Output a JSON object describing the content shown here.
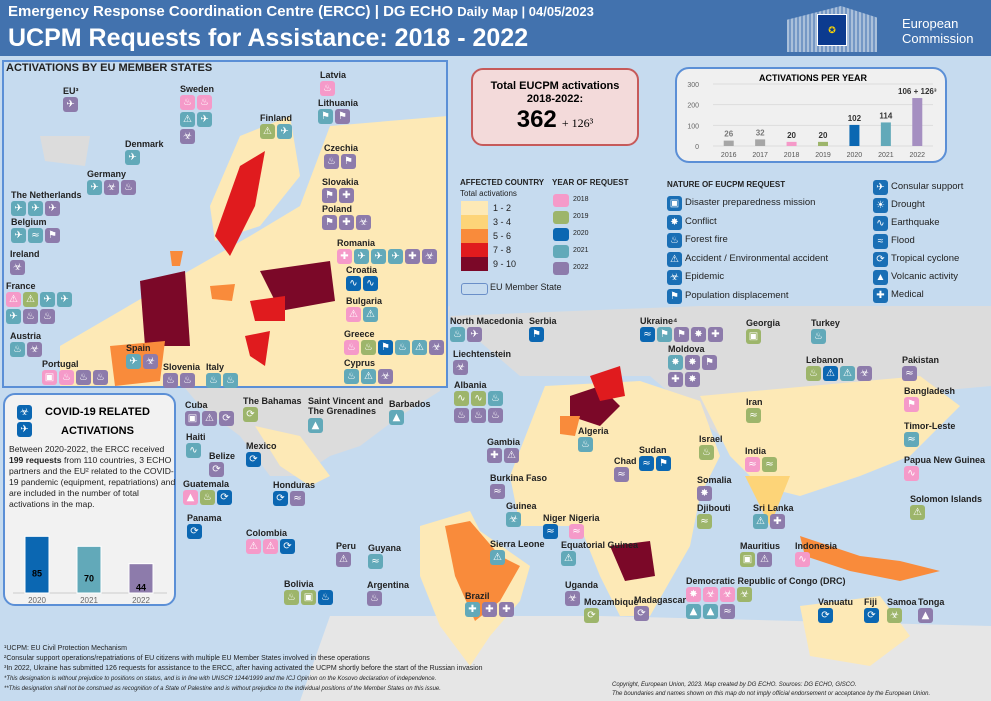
{
  "header": {
    "title_main": "Emergency Response Coordination  Centre (ERCC) | DG ECHO",
    "title_small": "Daily Map | 04/05/2023",
    "subtitle": "UCPM Requests for Assistance: 2018 - 2022",
    "logo_line1": "European",
    "logo_line2": "Commission"
  },
  "inset": {
    "title": "ACTIVATIONS BY EU MEMBER STATES"
  },
  "total": {
    "line1": "Total EUCPM  activations",
    "line2": "2018-2022:",
    "value": "362",
    "extra": "+ 126³"
  },
  "colors": {
    "years": {
      "2018": "#f59ac9",
      "2019": "#9db56b",
      "2020": "#0b67b2",
      "2021": "#62a9b9",
      "2022": "#8d7bab"
    },
    "classes": [
      "#fde9b6",
      "#fdd478",
      "#f98b3b",
      "#e01b1e",
      "#7b0828"
    ],
    "background": "#c6dbef",
    "header": "#4272ae"
  },
  "icon_types": {
    "p": "disaster-preparedness",
    "c": "conflict",
    "f": "forest-fire",
    "a": "accident",
    "e": "epidemic",
    "d": "population-displacement",
    "s": "consular-support",
    "dr": "drought",
    "q": "earthquake",
    "fl": "flood",
    "t": "tropical-cyclone",
    "v": "volcanic-activity",
    "m": "medical"
  },
  "chart_data": [
    {
      "type": "bar",
      "title": "ACTIVATIONS PER YEAR",
      "categories": [
        "2016",
        "2017",
        "2018",
        "2019",
        "2020",
        "2021",
        "2022"
      ],
      "values": [
        26,
        32,
        20,
        20,
        102,
        114,
        232
      ],
      "data_labels": [
        "26",
        "32",
        "20",
        "20",
        "102",
        "114",
        "106 + 126³"
      ],
      "colors": [
        "#a6a6a6",
        "#a6a6a6",
        "#f59ac9",
        "#9db56b",
        "#0b67b2",
        "#62a9b9",
        "#a58fc1"
      ],
      "yticks": [
        "0",
        "100",
        "200",
        "300"
      ],
      "ylim": [
        0,
        300
      ],
      "grid": true
    },
    {
      "type": "bar",
      "title": "COVID-19 RELATED ACTIVATIONS",
      "categories": [
        "2020",
        "2021",
        "2022"
      ],
      "values": [
        85,
        70,
        44
      ],
      "colors": [
        "#0b67b2",
        "#62a9b9",
        "#8d7bab"
      ],
      "ylim": [
        0,
        90
      ]
    }
  ],
  "legend": {
    "affected_title": "AFFECTED COUNTRY",
    "affected_sub": "Total activations",
    "classes": [
      "1 - 2",
      "3 - 4",
      "5 - 6",
      "7 - 8",
      "9 - 10"
    ],
    "year_title": "YEAR OF REQUEST",
    "years": [
      "2018",
      "2019",
      "2020",
      "2021",
      "2022"
    ],
    "eu_member": "EU Member State",
    "nature_title": "NATURE OF EUCPM REQUEST",
    "natures": [
      {
        "icon": "p",
        "label": "Disaster preparedness mission"
      },
      {
        "icon": "c",
        "label": "Conflict"
      },
      {
        "icon": "f",
        "label": "Forest fire"
      },
      {
        "icon": "a",
        "label": "Accident / Environmental accident"
      },
      {
        "icon": "e",
        "label": "Epidemic"
      },
      {
        "icon": "d",
        "label": "Population displacement"
      },
      {
        "icon": "s",
        "label": "Consular support"
      },
      {
        "icon": "dr",
        "label": "Drought"
      },
      {
        "icon": "q",
        "label": "Earthquake"
      },
      {
        "icon": "fl",
        "label": "Flood"
      },
      {
        "icon": "t",
        "label": "Tropical cyclone"
      },
      {
        "icon": "v",
        "label": "Volcanic activity"
      },
      {
        "icon": "m",
        "label": "Medical"
      }
    ]
  },
  "covid": {
    "title1": "COVID-19 RELATED",
    "title2": "ACTIVATIONS",
    "text_before": "Between 2020-2022, the ERCC received ",
    "text_bold": "199 requests",
    "text_after": " from 110 countries, 3 ECHO partners and the EU² related to the COVID-19 pandemic (equipment, repatriations) and are included in the number of total activations in the map."
  },
  "countries": [
    {
      "name": "EU³",
      "icons": [
        "s22"
      ]
    },
    {
      "name": "Sweden",
      "icons": [
        "f18",
        "f18",
        "a21",
        "s21",
        "e22"
      ]
    },
    {
      "name": "Finland",
      "icons": [
        "a19",
        "s21"
      ]
    },
    {
      "name": "Denmark",
      "icons": [
        "s21"
      ]
    },
    {
      "name": "Germany",
      "icons": [
        "s21",
        "e22",
        "f22"
      ]
    },
    {
      "name": "The Netherlands",
      "icons": [
        "s21",
        "s21",
        "s22"
      ]
    },
    {
      "name": "Belgium",
      "icons": [
        "s21",
        "fl21",
        "d22"
      ]
    },
    {
      "name": "Ireland",
      "icons": [
        "e22"
      ]
    },
    {
      "name": "France",
      "icons": [
        "a18",
        "a19",
        "s21",
        "s21",
        "s21",
        "f22",
        "f22"
      ]
    },
    {
      "name": "Austria",
      "icons": [
        "f21",
        "e22"
      ]
    },
    {
      "name": "Portugal",
      "icons": [
        "p18",
        "f18",
        "f22",
        "f22"
      ]
    },
    {
      "name": "Spain",
      "icons": [
        "s21",
        "e22"
      ]
    },
    {
      "name": "Slovenia",
      "icons": [
        "f22",
        "f22"
      ]
    },
    {
      "name": "Italy",
      "icons": [
        "f21",
        "f21"
      ]
    },
    {
      "name": "Latvia",
      "icons": [
        "f18"
      ]
    },
    {
      "name": "Lithuania",
      "icons": [
        "d21",
        "d22"
      ]
    },
    {
      "name": "Czechia",
      "icons": [
        "f22",
        "d22"
      ]
    },
    {
      "name": "Slovakia",
      "icons": [
        "d22",
        "m22"
      ]
    },
    {
      "name": "Poland",
      "icons": [
        "d22",
        "m22",
        "e22"
      ]
    },
    {
      "name": "Romania",
      "icons": [
        "m18",
        "s21",
        "s21",
        "s21",
        "m22",
        "e22"
      ]
    },
    {
      "name": "Croatia",
      "icons": [
        "q20",
        "q20"
      ]
    },
    {
      "name": "Bulgaria",
      "icons": [
        "a18",
        "a21"
      ]
    },
    {
      "name": "Greece",
      "icons": [
        "f18",
        "f19",
        "d20",
        "f21",
        "a21",
        "e22"
      ]
    },
    {
      "name": "Cyprus",
      "icons": [
        "f21",
        "a21",
        "e22"
      ]
    },
    {
      "name": "North Macedonia",
      "icons": [
        "f21",
        "s22"
      ]
    },
    {
      "name": "Serbia",
      "icons": [
        "d20"
      ]
    },
    {
      "name": "Liechtenstein",
      "icons": [
        "e22"
      ]
    },
    {
      "name": "Albania",
      "icons": [
        "q19",
        "q19",
        "f21",
        "f22",
        "f22",
        "f22"
      ]
    },
    {
      "name": "Ukraine⁴",
      "icons": [
        "fl20",
        "d21",
        "d22",
        "c22",
        "m22"
      ]
    },
    {
      "name": "Moldova",
      "icons": [
        "c21",
        "c22",
        "d22",
        "m22",
        "c22"
      ]
    },
    {
      "name": "Cuba",
      "icons": [
        "p22",
        "a22",
        "t22"
      ]
    },
    {
      "name": "The Bahamas",
      "icons": [
        "t19"
      ]
    },
    {
      "name": "Saint Vincent and The Grenadines",
      "icons": [
        "v21"
      ]
    },
    {
      "name": "Barbados",
      "icons": [
        "v21"
      ]
    },
    {
      "name": "Haiti",
      "icons": [
        "q21"
      ]
    },
    {
      "name": "Belize",
      "icons": [
        "t22"
      ]
    },
    {
      "name": "Mexico",
      "icons": [
        "t20"
      ]
    },
    {
      "name": "Guatemala",
      "icons": [
        "v18",
        "f19",
        "t20"
      ]
    },
    {
      "name": "Honduras",
      "icons": [
        "t20",
        "fl22"
      ]
    },
    {
      "name": "Panama",
      "icons": [
        "t20"
      ]
    },
    {
      "name": "Colombia",
      "icons": [
        "a18",
        "a18",
        "t20"
      ]
    },
    {
      "name": "Peru",
      "icons": [
        "a22"
      ]
    },
    {
      "name": "Guyana",
      "icons": [
        "fl21"
      ]
    },
    {
      "name": "Bolivia",
      "icons": [
        "f19",
        "p19",
        "f20"
      ]
    },
    {
      "name": "Argentina",
      "icons": [
        "f22"
      ]
    },
    {
      "name": "Brazil",
      "icons": [
        "m21",
        "m22",
        "m22"
      ]
    },
    {
      "name": "Algeria",
      "icons": [
        "f21"
      ]
    },
    {
      "name": "Gambia",
      "icons": [
        "m22",
        "a22"
      ]
    },
    {
      "name": "Sudan",
      "icons": [
        "fl20",
        "d20"
      ]
    },
    {
      "name": "Chad",
      "icons": [
        "fl22"
      ]
    },
    {
      "name": "Burkina Faso",
      "icons": [
        "fl22"
      ]
    },
    {
      "name": "Guinea",
      "icons": [
        "e21"
      ]
    },
    {
      "name": "Niger",
      "icons": [
        "fl20"
      ]
    },
    {
      "name": "Nigeria",
      "icons": [
        "fl18"
      ]
    },
    {
      "name": "Sierra Leone",
      "icons": [
        "a21"
      ]
    },
    {
      "name": "Equatorial Guinea",
      "icons": [
        "a21"
      ]
    },
    {
      "name": "Uganda",
      "icons": [
        "e22"
      ]
    },
    {
      "name": "Mozambique",
      "icons": [
        "t19"
      ]
    },
    {
      "name": "Madagascar",
      "icons": [
        "t22"
      ]
    },
    {
      "name": "Somalia",
      "icons": [
        "c22"
      ]
    },
    {
      "name": "Djibouti",
      "icons": [
        "fl19"
      ]
    },
    {
      "name": "Georgia",
      "icons": [
        "p19"
      ]
    },
    {
      "name": "Turkey",
      "icons": [
        "f21"
      ]
    },
    {
      "name": "Lebanon",
      "icons": [
        "f19",
        "a20",
        "a21",
        "e22"
      ]
    },
    {
      "name": "Pakistan",
      "icons": [
        "fl22"
      ]
    },
    {
      "name": "Bangladesh",
      "icons": [
        "d18"
      ]
    },
    {
      "name": "Timor-Leste",
      "icons": [
        "fl21"
      ]
    },
    {
      "name": "Papua New Guinea",
      "icons": [
        "q18"
      ]
    },
    {
      "name": "Solomon Islands",
      "icons": [
        "a19"
      ]
    },
    {
      "name": "Iran",
      "icons": [
        "fl19"
      ]
    },
    {
      "name": "Israel",
      "icons": [
        "f19"
      ]
    },
    {
      "name": "India",
      "icons": [
        "fl18",
        "fl19"
      ]
    },
    {
      "name": "Sri Lanka",
      "icons": [
        "a21",
        "m22"
      ]
    },
    {
      "name": "Mauritius",
      "icons": [
        "p19",
        "a22"
      ]
    },
    {
      "name": "Indonesia",
      "icons": [
        "q18"
      ]
    },
    {
      "name": "Democratic Republic of Congo (DRC)",
      "icons": [
        "c18",
        "e18",
        "e18",
        "e19",
        "v21",
        "v21",
        "fl22"
      ]
    },
    {
      "name": "Vanuatu",
      "icons": [
        "t20"
      ]
    },
    {
      "name": "Fiji",
      "icons": [
        "t20"
      ]
    },
    {
      "name": "Samoa",
      "icons": [
        "e19"
      ]
    },
    {
      "name": "Tonga",
      "icons": [
        "v22"
      ]
    }
  ],
  "footnotes": [
    "¹UCPM: EU Civil Protection Mechanism",
    "²Consular support  operations/repatriations  of EU citizens  with multiple  EU Member States involved in these operations",
    "³In 2022, Ukraine has submitted 126 requests for assistance to the ERCC, after having activated the UCPM shortly before the start of the Russian invasion",
    "*This designation is without prejudice to positions on status, and is in line with UNSCR 1244/1999 and the ICJ Opinion on the Kosovo declaration of independence.",
    "**This designation shall not be construed as recognition of a State of Palestine and is without prejudice to the individual positions of the Member States on this issue."
  ],
  "copyright": [
    "Copyright,  European  Union, 2023.  Map created by DG ECHO.  Sources: DG ECHO, GISCO.",
    "The boundaries  and names shown on this map do not imply official endorsement or acceptance by the European  Union."
  ]
}
